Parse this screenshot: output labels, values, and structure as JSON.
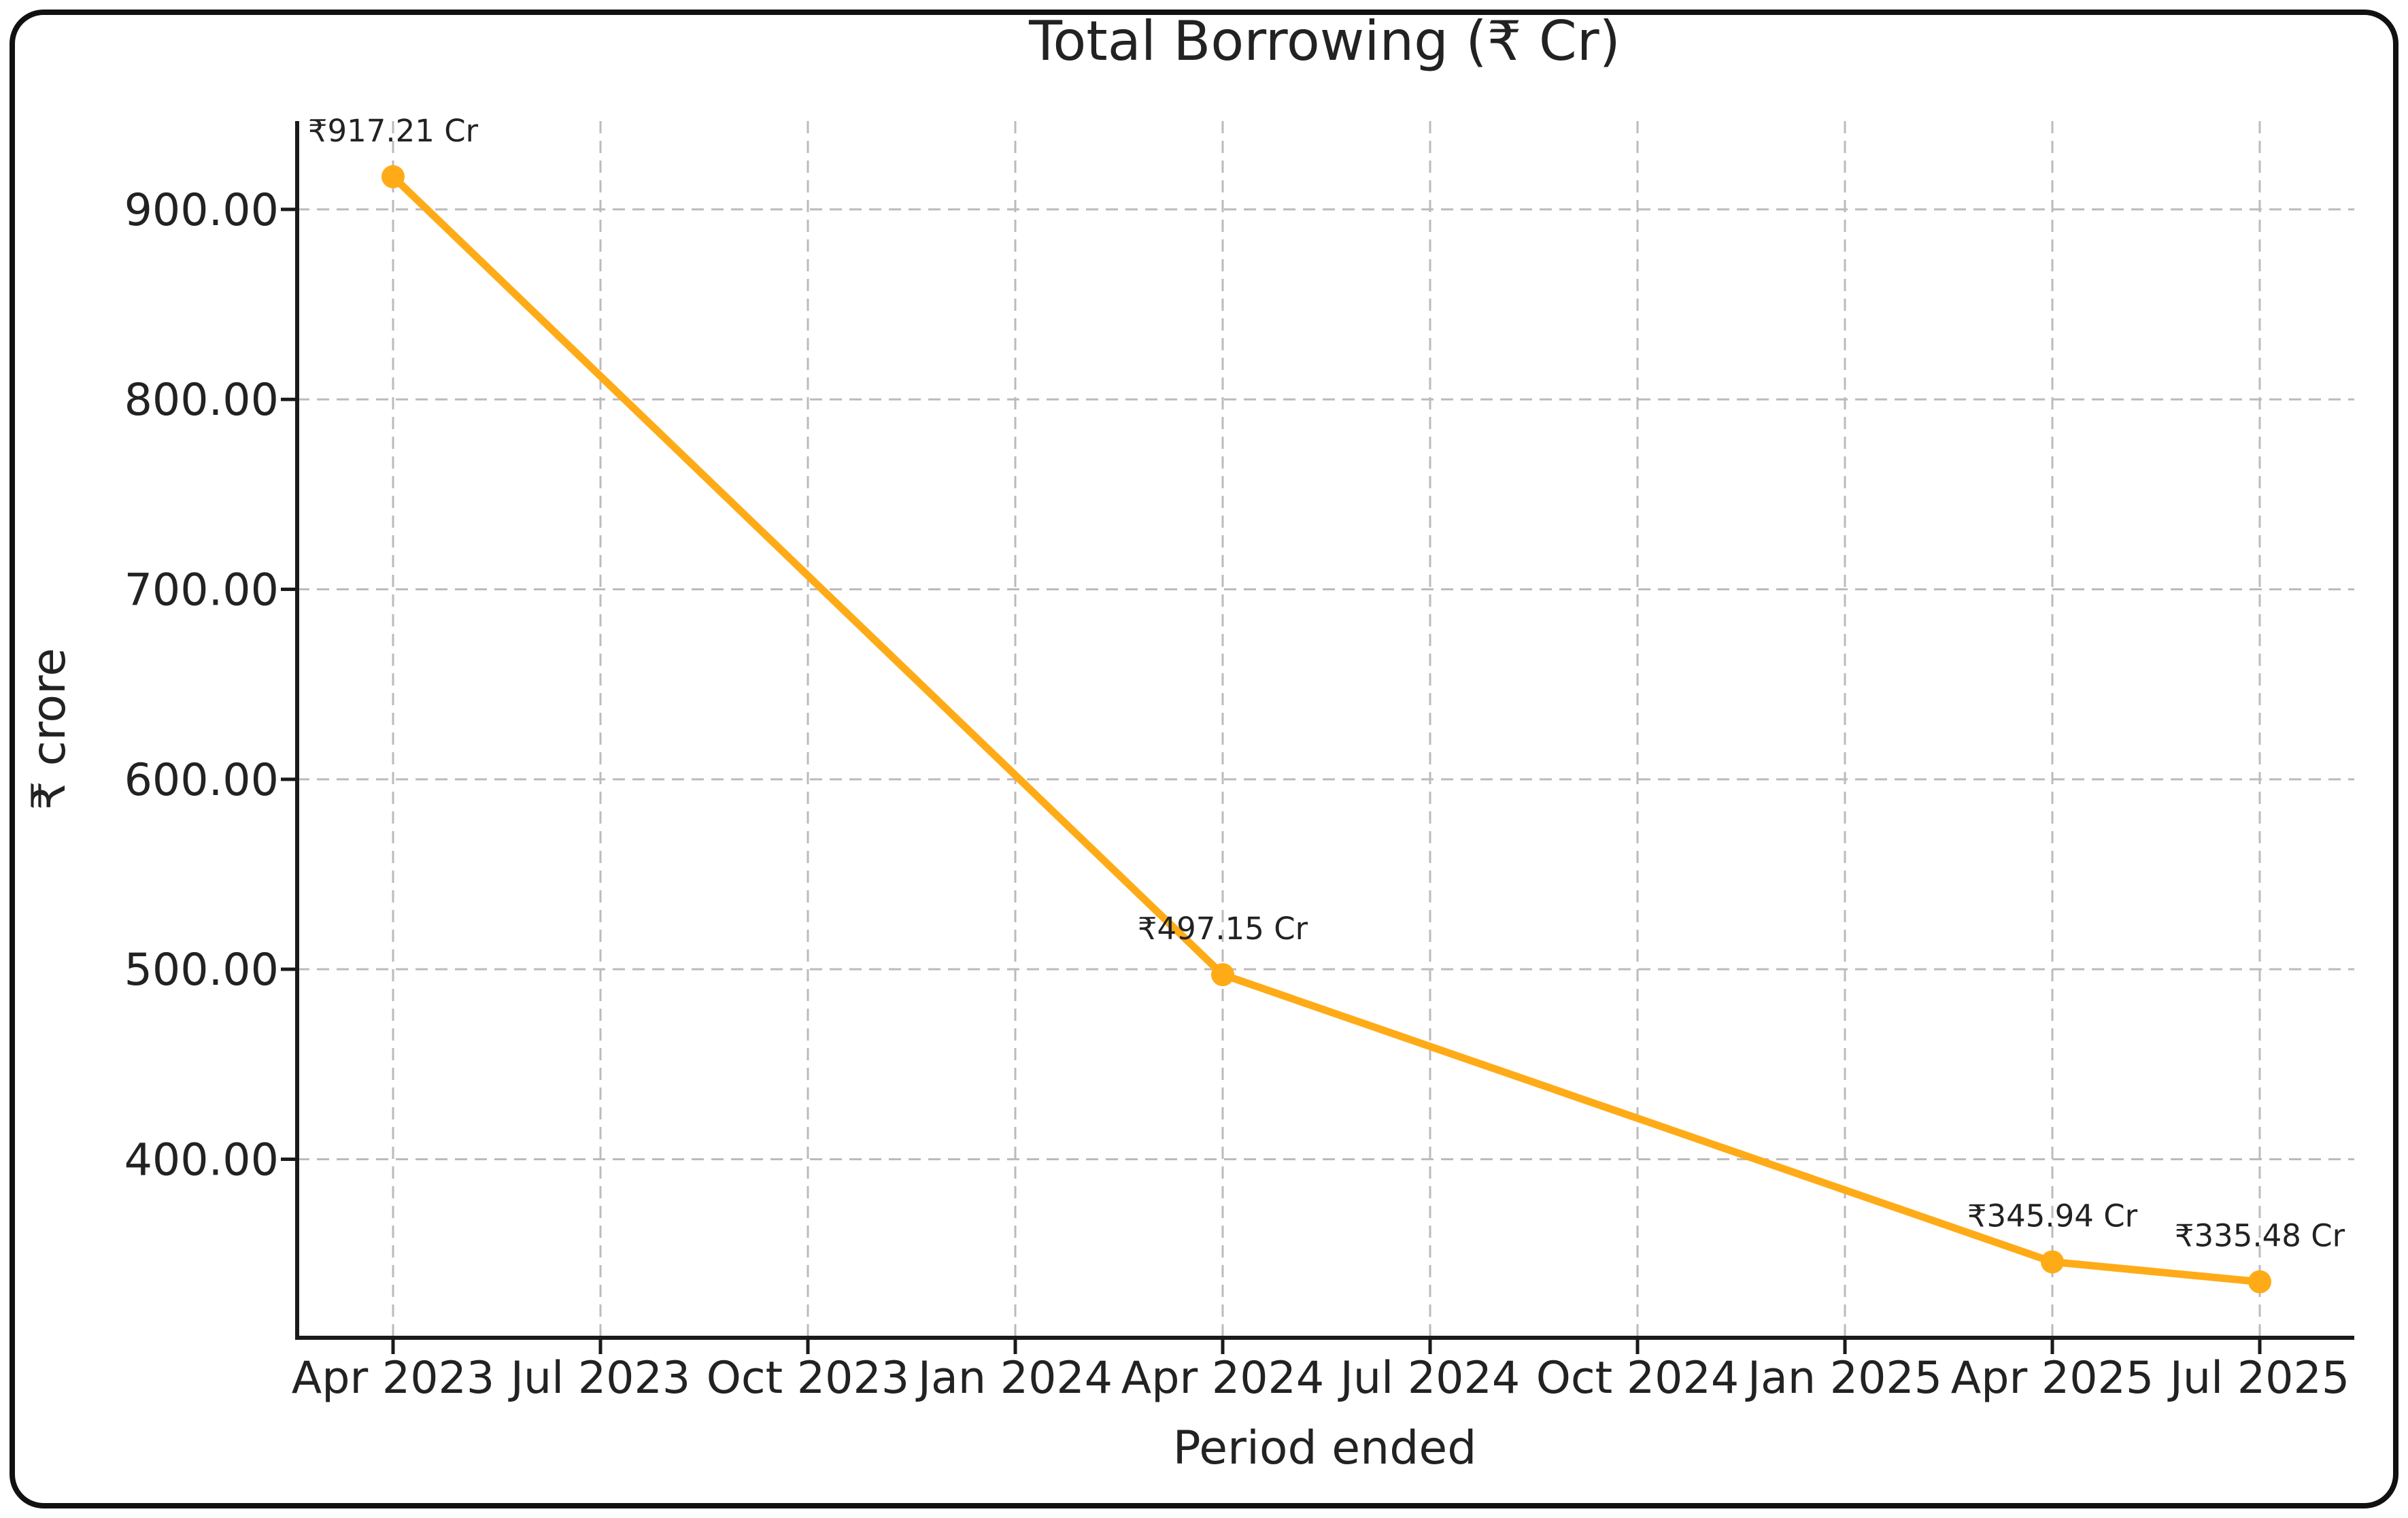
{
  "figure": {
    "background": "#ffffff",
    "border_color": "#111111"
  },
  "chart_data": {
    "type": "line",
    "title": "Total Borrowing (₹ Cr)",
    "xlabel": "Period ended",
    "ylabel": "₹ crore",
    "categories": [
      "Apr 2023",
      "Jul 2023",
      "Oct 2023",
      "Jan 2024",
      "Apr 2024",
      "Jul 2024",
      "Oct 2024",
      "Jan 2025",
      "Apr 2025",
      "Jul 2025"
    ],
    "series": [
      {
        "points": [
          {
            "x": "Apr 2023",
            "y": 917.21,
            "label": "₹917.21 Cr"
          },
          {
            "x": "Apr 2024",
            "y": 497.15,
            "label": "₹497.15 Cr"
          },
          {
            "x": "Apr 2025",
            "y": 345.94,
            "label": "₹345.94 Cr"
          },
          {
            "x": "Jul 2025",
            "y": 335.48,
            "label": "₹335.48 Cr"
          }
        ]
      }
    ],
    "yticks": [
      400,
      500,
      600,
      700,
      800,
      900
    ],
    "ytick_labels": [
      "400.00",
      "500.00",
      "600.00",
      "700.00",
      "800.00",
      "900.00"
    ],
    "ylim": [
      306,
      946.5
    ],
    "grid": true,
    "legend": false,
    "colors": {
      "line": "#ffab17",
      "marker": "#ffab17",
      "grid": "#bbbbbb",
      "axis": "#1a1a1a",
      "text": "#222222"
    }
  }
}
